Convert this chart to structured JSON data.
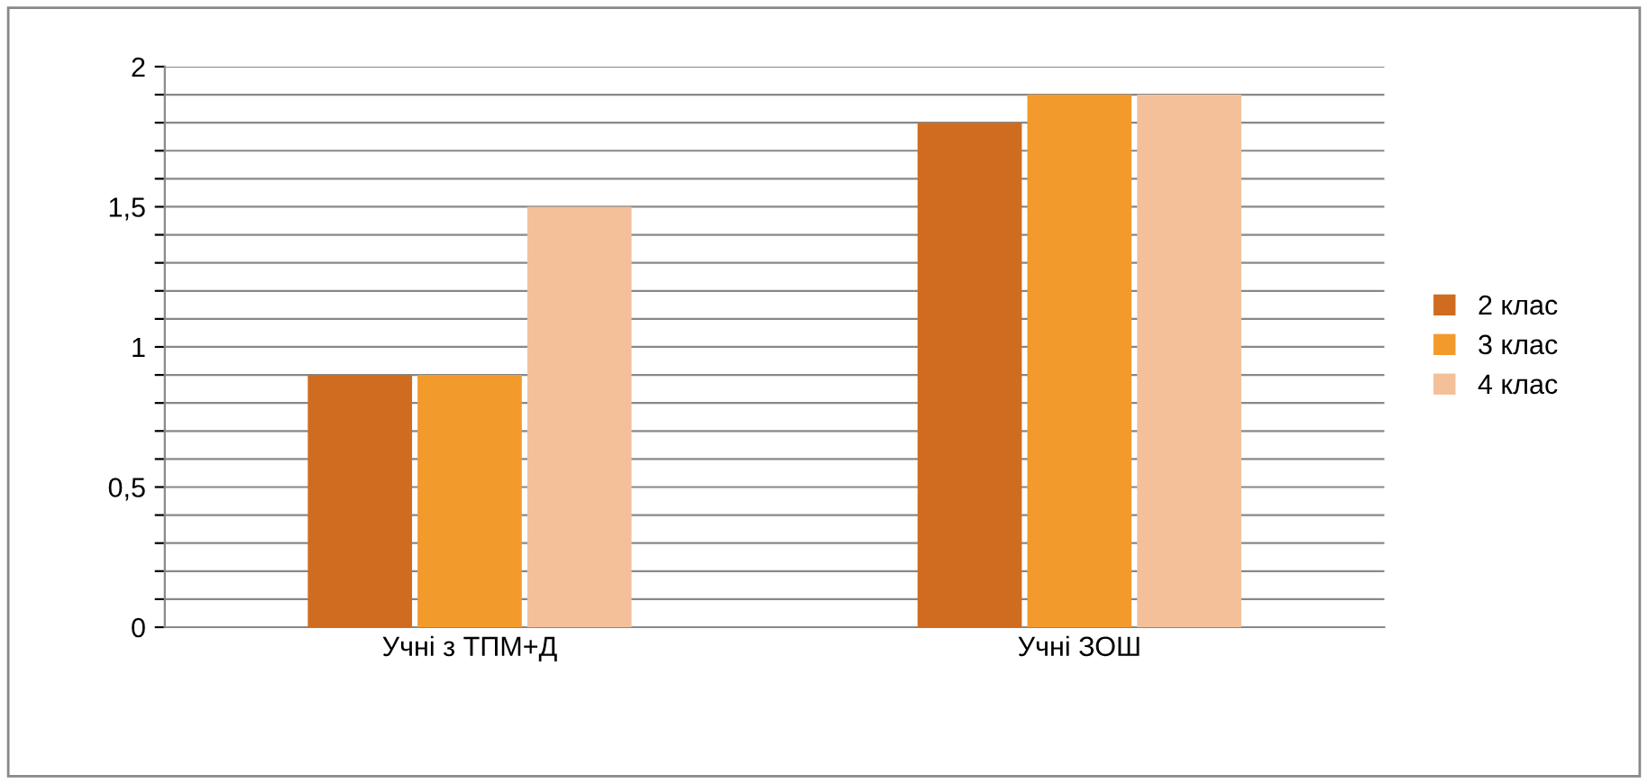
{
  "chart_data": {
    "type": "bar",
    "categories": [
      "Учні з ТПМ+Д",
      "Учні ЗОШ"
    ],
    "series": [
      {
        "name": "2 клас",
        "color": "#d06c1f",
        "values": [
          0.9,
          1.8
        ]
      },
      {
        "name": "3 клас",
        "color": "#f39a2c",
        "values": [
          0.9,
          1.9
        ]
      },
      {
        "name": "4 клас",
        "color": "#f4c09a",
        "values": [
          1.5,
          1.9
        ]
      }
    ],
    "ylim": [
      0,
      2
    ],
    "yticks": [
      {
        "value": 0,
        "label": "0"
      },
      {
        "value": 0.1,
        "label": null
      },
      {
        "value": 0.2,
        "label": null
      },
      {
        "value": 0.3,
        "label": null
      },
      {
        "value": 0.4,
        "label": null
      },
      {
        "value": 0.5,
        "label": "0,5"
      },
      {
        "value": 0.6,
        "label": null
      },
      {
        "value": 0.7,
        "label": null
      },
      {
        "value": 0.8,
        "label": null
      },
      {
        "value": 0.9,
        "label": null
      },
      {
        "value": 1,
        "label": "1"
      },
      {
        "value": 1.1,
        "label": null
      },
      {
        "value": 1.2,
        "label": null
      },
      {
        "value": 1.3,
        "label": null
      },
      {
        "value": 1.4,
        "label": null
      },
      {
        "value": 1.5,
        "label": "1,5"
      },
      {
        "value": 1.6,
        "label": null
      },
      {
        "value": 1.7,
        "label": null
      },
      {
        "value": 1.8,
        "label": null
      },
      {
        "value": 1.9,
        "label": null
      },
      {
        "value": 2,
        "label": "2"
      }
    ],
    "grid": "y",
    "legend": "right"
  }
}
